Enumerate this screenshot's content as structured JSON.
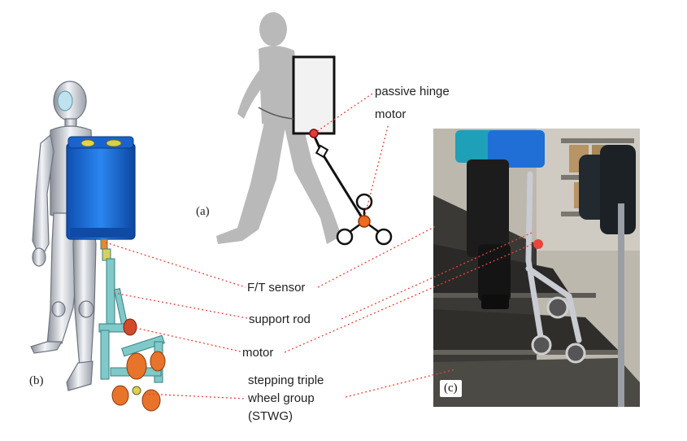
{
  "labels": {
    "passive_hinge": "passive hinge",
    "motor_top": "motor",
    "ft_sensor": "F/T sensor",
    "support_rod": "support rod",
    "motor": "motor",
    "stwg_line1": "stepping triple",
    "stwg_line2": "wheel group",
    "stwg_line3": "(STWG)"
  },
  "panels": {
    "a": "(a)",
    "b": "(b)",
    "c": "(c)"
  },
  "colors": {
    "leader_line": "#e8453c",
    "backpack": "#1f6fd6",
    "frame": "#7fc9c9",
    "wheels": "#e8732a",
    "silhouette": "#b9b9b9",
    "hinge": "#e23b3b",
    "motor_joint": "#ee6a1e"
  }
}
